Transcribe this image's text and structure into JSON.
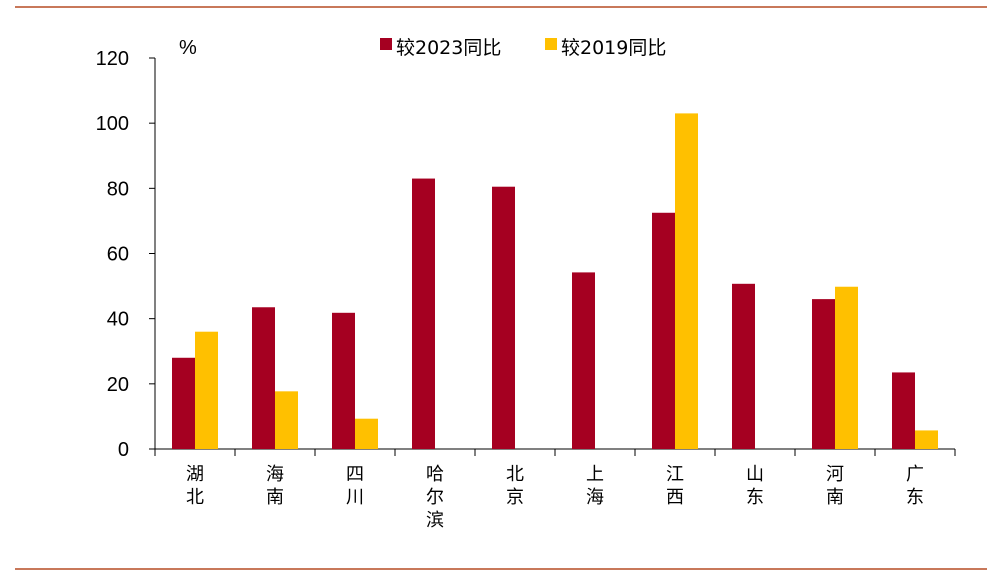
{
  "chart_data": {
    "type": "bar",
    "unit_label": "%",
    "categories": [
      "湖北",
      "海南",
      "四川",
      "哈尔滨",
      "北京",
      "上海",
      "江西",
      "山东",
      "河南",
      "广东"
    ],
    "series": [
      {
        "name": "较2023同比",
        "color": "#a50021",
        "values": [
          28,
          43.5,
          41.8,
          83,
          80.5,
          54.2,
          72.5,
          50.7,
          46,
          23.5
        ]
      },
      {
        "name": "较2019同比",
        "color": "#ffc000",
        "values": [
          36,
          17.7,
          9.3,
          null,
          null,
          null,
          103,
          null,
          49.8,
          5.7
        ]
      }
    ],
    "yticks": [
      0,
      20,
      40,
      60,
      80,
      100,
      120
    ],
    "ylim": [
      0,
      120
    ],
    "grid": false,
    "legend_position": "top-center"
  }
}
